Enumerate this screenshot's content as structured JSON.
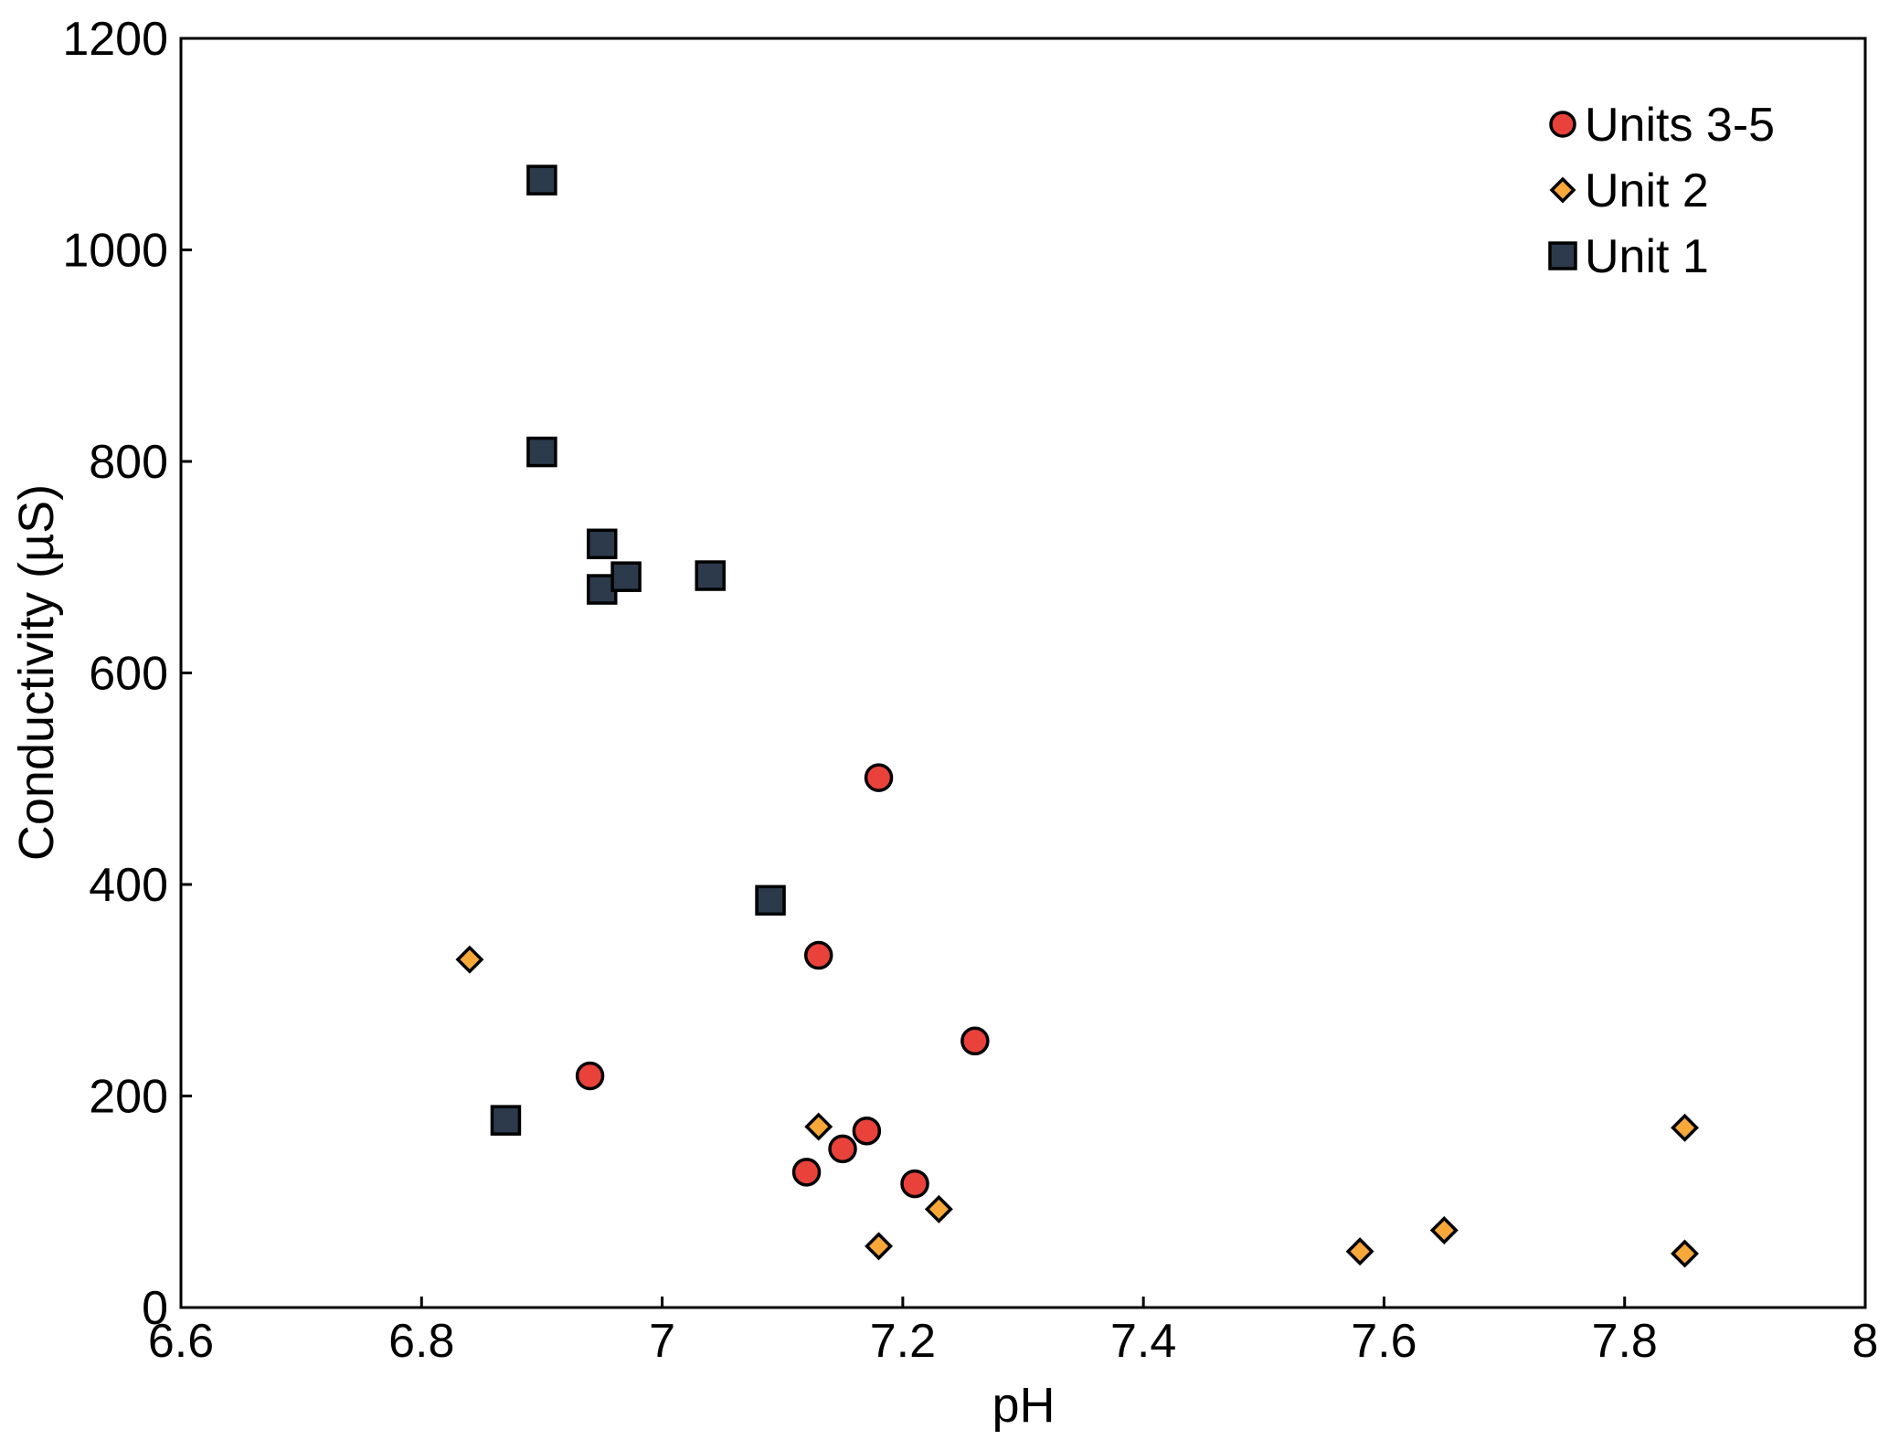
{
  "chart_data": {
    "type": "scatter",
    "title": "",
    "xlabel": "pH",
    "ylabel": "Conductivity (µS)",
    "xlim": [
      6.6,
      8
    ],
    "ylim": [
      0,
      1200
    ],
    "xticks": [
      "6.6",
      "6.8",
      "7",
      "7.2",
      "7.4",
      "7.6",
      "7.8",
      "8"
    ],
    "yticks": [
      "0",
      "200",
      "400",
      "600",
      "800",
      "1000",
      "1200"
    ],
    "grid": false,
    "legend_position": "top-right",
    "series": [
      {
        "name": "Units 3-5",
        "marker": "circle",
        "color": "#e8423a",
        "points": [
          {
            "x": 6.94,
            "y": 219
          },
          {
            "x": 7.12,
            "y": 128
          },
          {
            "x": 7.13,
            "y": 333
          },
          {
            "x": 7.15,
            "y": 150
          },
          {
            "x": 7.17,
            "y": 167
          },
          {
            "x": 7.18,
            "y": 501
          },
          {
            "x": 7.21,
            "y": 117
          },
          {
            "x": 7.26,
            "y": 252
          }
        ]
      },
      {
        "name": "Unit 2",
        "marker": "diamond",
        "color": "#f7a839",
        "points": [
          {
            "x": 6.84,
            "y": 329
          },
          {
            "x": 7.13,
            "y": 171
          },
          {
            "x": 7.18,
            "y": 58
          },
          {
            "x": 7.23,
            "y": 93
          },
          {
            "x": 7.58,
            "y": 53
          },
          {
            "x": 7.65,
            "y": 73
          },
          {
            "x": 7.85,
            "y": 170
          },
          {
            "x": 7.85,
            "y": 51
          }
        ]
      },
      {
        "name": "Unit 1",
        "marker": "square",
        "color": "#2c3a4b",
        "points": [
          {
            "x": 6.87,
            "y": 177
          },
          {
            "x": 6.9,
            "y": 1066
          },
          {
            "x": 6.9,
            "y": 809
          },
          {
            "x": 6.95,
            "y": 722
          },
          {
            "x": 6.95,
            "y": 679
          },
          {
            "x": 6.97,
            "y": 691
          },
          {
            "x": 7.04,
            "y": 692
          },
          {
            "x": 7.09,
            "y": 385
          }
        ]
      }
    ]
  }
}
